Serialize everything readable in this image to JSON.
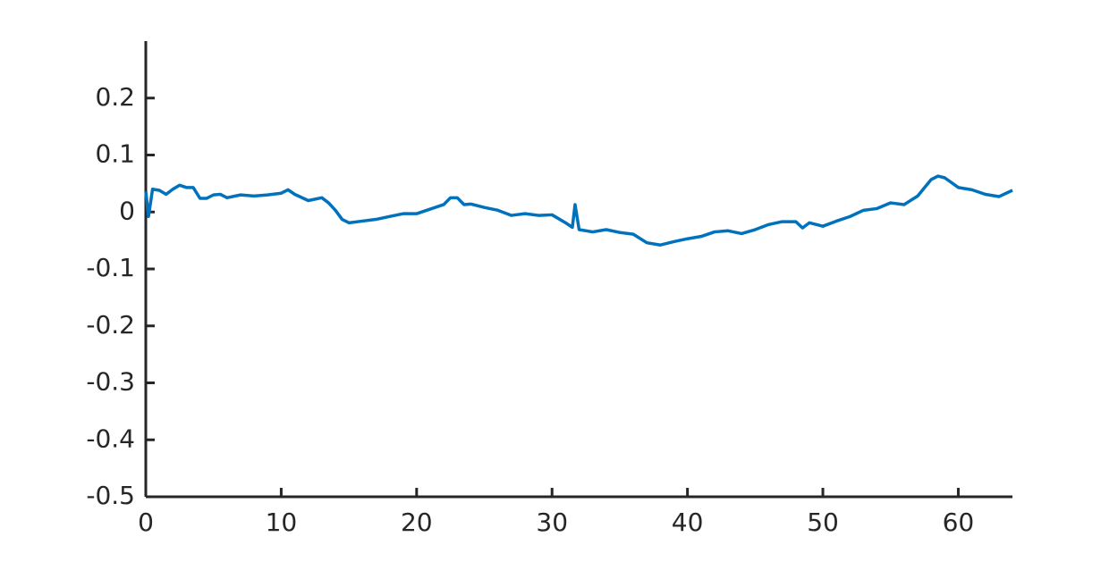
{
  "chart_data": {
    "type": "line",
    "x": [
      0,
      0.2,
      0.5,
      1,
      1.5,
      2,
      2.5,
      3,
      3.5,
      4,
      4.5,
      5,
      5.5,
      6,
      7,
      8,
      9,
      10,
      10.5,
      11,
      12,
      13,
      13.5,
      14,
      14.5,
      15,
      16,
      17,
      18,
      19,
      20,
      21,
      22,
      22.5,
      23,
      23.5,
      24,
      25,
      26,
      27,
      28,
      29,
      30,
      31,
      31.5,
      31.7,
      32,
      33,
      34,
      35,
      36,
      37,
      38,
      39,
      40,
      41,
      42,
      43,
      44,
      45,
      46,
      47,
      48,
      48.5,
      49,
      50,
      51,
      52,
      53,
      54,
      55,
      56,
      57,
      58,
      58.5,
      59,
      60,
      61,
      62,
      63,
      64
    ],
    "series": [
      {
        "color": "#0072bd",
        "values": [
          0.036,
          -0.008,
          0.04,
          0.038,
          0.031,
          0.04,
          0.047,
          0.043,
          0.043,
          0.024,
          0.024,
          0.03,
          0.031,
          0.025,
          0.03,
          0.028,
          0.03,
          0.033,
          0.039,
          0.031,
          0.02,
          0.025,
          0.016,
          0.003,
          -0.013,
          -0.019,
          -0.016,
          -0.013,
          -0.008,
          -0.003,
          -0.003,
          0.005,
          0.013,
          0.025,
          0.025,
          0.013,
          0.014,
          0.008,
          0.003,
          -0.006,
          -0.003,
          -0.006,
          -0.005,
          -0.019,
          -0.027,
          0.013,
          -0.031,
          -0.035,
          -0.031,
          -0.036,
          -0.039,
          -0.054,
          -0.058,
          -0.052,
          -0.047,
          -0.043,
          -0.035,
          -0.033,
          -0.038,
          -0.031,
          -0.022,
          -0.017,
          -0.017,
          -0.028,
          -0.019,
          -0.025,
          -0.016,
          -0.008,
          0.003,
          0.006,
          0.016,
          0.013,
          0.028,
          0.057,
          0.063,
          0.06,
          0.043,
          0.039,
          0.031,
          0.027,
          0.038
        ]
      }
    ],
    "xlim": [
      0,
      64
    ],
    "xticks": [
      0,
      10,
      20,
      30,
      40,
      50,
      60
    ],
    "ylim": [
      -0.5,
      0.3
    ],
    "yticks": [
      -0.5,
      -0.4,
      -0.3,
      -0.2,
      -0.1,
      0,
      0.1,
      0.2
    ],
    "grid": false
  }
}
